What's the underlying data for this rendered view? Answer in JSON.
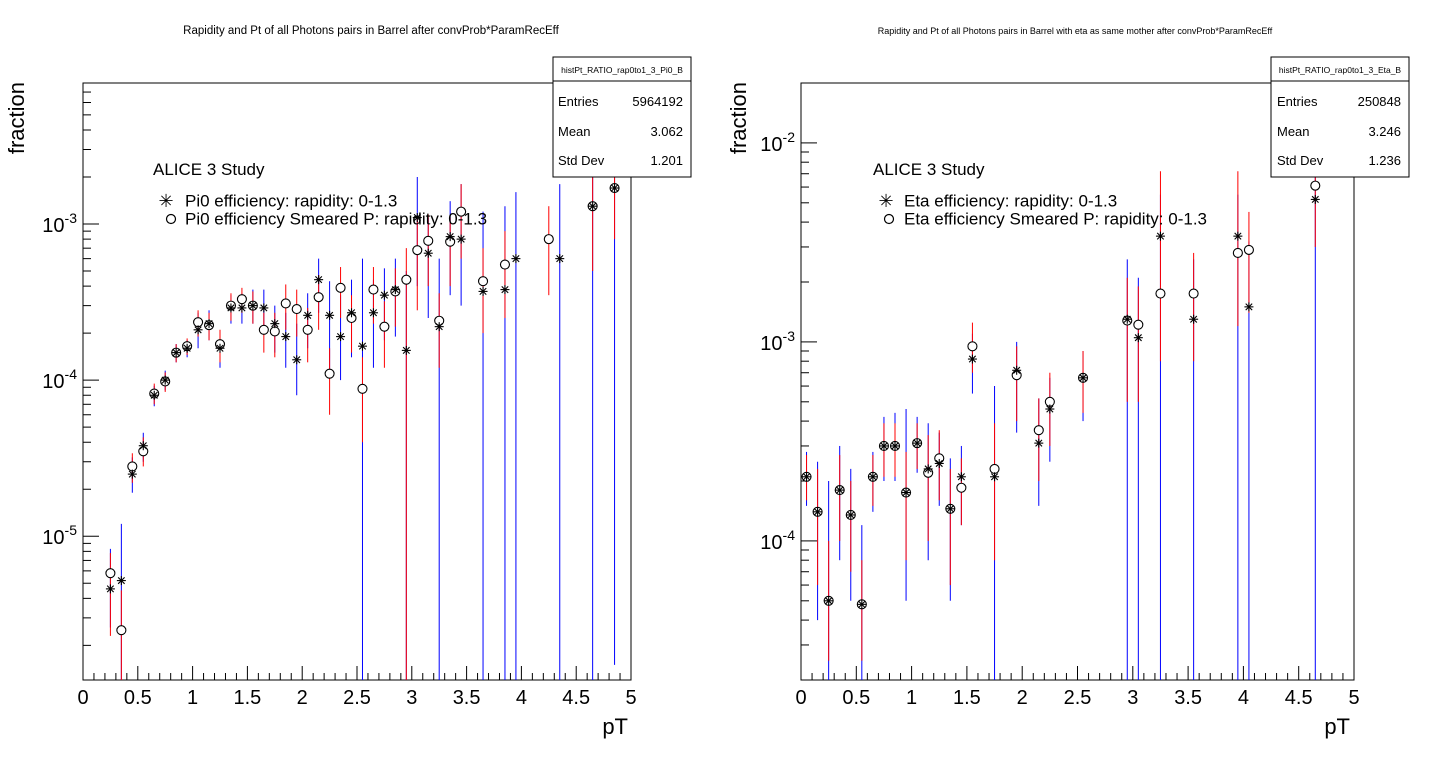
{
  "chart_data": [
    {
      "type": "scatter",
      "title": "Rapidity and Pt of all Photons pairs in Barrel after convProb*ParamRecEff",
      "xlabel": "pT",
      "ylabel": "fraction",
      "xlim": [
        0,
        5
      ],
      "ylim": [
        1.2e-06,
        0.008
      ],
      "ylog": true,
      "x_ticks": [
        "0",
        "0.5",
        "1",
        "1.5",
        "2",
        "2.5",
        "3",
        "3.5",
        "4",
        "4.5",
        "5"
      ],
      "y_ticks": [
        "10",
        "10",
        "10"
      ],
      "y_tick_exponents": [
        "-5",
        "-4",
        "-3"
      ],
      "y_tick_values": [
        1e-05,
        0.0001,
        0.001
      ],
      "annotation": "ALICE 3 Study",
      "legend": [
        {
          "label": "Pi0 efficiency: rapidity: 0-1.3",
          "marker": "star"
        },
        {
          "label": "Pi0 efficiency Smeared P: rapidity: 0-1.3",
          "marker": "circle"
        }
      ],
      "stats": {
        "name": "histPt_RATIO_rap0to1_3_Pi0_B",
        "rows": [
          {
            "label": "Entries",
            "value": "5964192"
          },
          {
            "label": "Mean",
            "value": "3.062"
          },
          {
            "label": "Std Dev",
            "value": "1.201"
          }
        ]
      },
      "series": [
        {
          "marker": "star",
          "error_color": "#0000ff",
          "x": [
            0.25,
            0.35,
            0.45,
            0.55,
            0.65,
            0.75,
            0.85,
            0.95,
            1.05,
            1.15,
            1.25,
            1.35,
            1.45,
            1.55,
            1.65,
            1.75,
            1.85,
            1.95,
            2.05,
            2.15,
            2.25,
            2.35,
            2.45,
            2.55,
            2.65,
            2.75,
            2.85,
            2.95,
            3.05,
            3.15,
            3.25,
            3.35,
            3.45,
            3.65,
            3.85,
            3.95,
            4.35,
            4.65,
            4.85
          ],
          "y": [
            4.6e-06,
            5.2e-06,
            2.5e-05,
            3.8e-05,
            8e-05,
            0.0001,
            0.00015,
            0.00016,
            0.00021,
            0.00023,
            0.00016,
            0.00029,
            0.00029,
            0.0003,
            0.00029,
            0.00023,
            0.00019,
            0.000135,
            0.00026,
            0.00044,
            0.00026,
            0.00019,
            0.00027,
            0.000165,
            0.00027,
            0.00035,
            0.00038,
            0.000155,
            0.0011,
            0.00065,
            0.00022,
            0.00083,
            0.0008,
            0.00037,
            0.00038,
            0.0006,
            0.0006,
            0.0013,
            0.0017
          ],
          "y_low": [
            2.6e-06,
            1.2e-06,
            1.9e-05,
            3e-05,
            6.8e-05,
            8.6e-05,
            0.00013,
            0.00014,
            0.00016,
            0.00018,
            0.00012,
            0.00023,
            0.00023,
            0.00023,
            0.00021,
            0.00015,
            0.00012,
            8e-05,
            0.00016,
            0.00027,
            0.00011,
            0.0001,
            0.00014,
            1.2e-06,
            0.00012,
            0.00018,
            0.00019,
            1.2e-06,
            0.0004,
            0.00025,
            1.2e-06,
            0.00035,
            0.0003,
            1.2e-06,
            1.2e-06,
            1.2e-06,
            1.2e-06,
            1.2e-06,
            1.5e-06
          ],
          "y_high": [
            8.3e-06,
            1.2e-05,
            3.2e-05,
            4.6e-05,
            9.2e-05,
            0.000115,
            0.00017,
            0.00018,
            0.00027,
            0.00028,
            0.0002,
            0.00035,
            0.00036,
            0.00038,
            0.00038,
            0.0003,
            0.00027,
            0.00023,
            0.00036,
            0.0006,
            0.00043,
            0.00035,
            0.00044,
            0.0006,
            0.00044,
            0.00052,
            0.0006,
            0.0005,
            0.002,
            0.0011,
            0.0006,
            0.0014,
            0.0018,
            0.0012,
            0.0013,
            0.0016,
            0.0018,
            0.0024,
            0.004
          ]
        },
        {
          "marker": "circle",
          "error_color": "#ff0000",
          "x": [
            0.25,
            0.35,
            0.45,
            0.55,
            0.65,
            0.75,
            0.85,
            0.95,
            1.05,
            1.15,
            1.25,
            1.35,
            1.45,
            1.55,
            1.65,
            1.75,
            1.85,
            1.95,
            2.05,
            2.15,
            2.25,
            2.35,
            2.45,
            2.55,
            2.65,
            2.75,
            2.85,
            2.95,
            3.05,
            3.15,
            3.25,
            3.35,
            3.45,
            3.65,
            3.85,
            4.25,
            4.65,
            4.85
          ],
          "y": [
            5.8e-06,
            2.5e-06,
            2.8e-05,
            3.5e-05,
            8.2e-05,
            9.8e-05,
            0.00015,
            0.000165,
            0.000235,
            0.000225,
            0.00017,
            0.0003,
            0.00033,
            0.0003,
            0.00021,
            0.000205,
            0.00031,
            0.000285,
            0.00021,
            0.00034,
            0.00011,
            0.00039,
            0.00025,
            8.8e-05,
            0.00038,
            0.00022,
            0.00037,
            0.00044,
            0.00068,
            0.00078,
            0.00024,
            0.00077,
            0.0012,
            0.00043,
            0.00055,
            0.0008,
            0.0013,
            0.0017
          ],
          "y_low": [
            2.3e-06,
            1.2e-06,
            2.2e-05,
            2.8e-05,
            7e-05,
            8.4e-05,
            0.00013,
            0.000145,
            0.00019,
            0.00018,
            0.00013,
            0.00024,
            0.00027,
            0.00023,
            0.00015,
            0.00014,
            0.00021,
            0.00019,
            0.00013,
            0.00021,
            6e-05,
            0.00025,
            0.00015,
            4e-05,
            0.00023,
            0.00012,
            0.00022,
            1.2e-06,
            0.00028,
            0.0004,
            0.00012,
            0.0004,
            0.0006,
            0.0002,
            0.00025,
            0.00035,
            0.0005,
            0.0008
          ],
          "y_high": [
            7.8e-06,
            4.5e-06,
            3.4e-05,
            4.3e-05,
            9.5e-05,
            0.000112,
            0.00017,
            0.000185,
            0.00028,
            0.00027,
            0.00021,
            0.00036,
            0.00039,
            0.00037,
            0.00027,
            0.00027,
            0.00041,
            0.00038,
            0.00029,
            0.00047,
            0.00016,
            0.00053,
            0.00035,
            0.00014,
            0.00053,
            0.00032,
            0.00052,
            0.0007,
            0.0011,
            0.00115,
            0.00036,
            0.0011,
            0.0018,
            0.0007,
            0.0009,
            0.0013,
            0.002,
            0.0026
          ]
        }
      ]
    },
    {
      "type": "scatter",
      "title": "Rapidity and Pt of all Photons pairs in Barrel with eta as same mother after convProb*ParamRecEff",
      "xlabel": "pT",
      "ylabel": "fraction",
      "xlim": [
        0,
        5
      ],
      "ylim": [
        2e-05,
        0.02
      ],
      "ylog": true,
      "x_ticks": [
        "0",
        "0.5",
        "1",
        "1.5",
        "2",
        "2.5",
        "3",
        "3.5",
        "4",
        "4.5",
        "5"
      ],
      "y_ticks": [
        "10",
        "10",
        "10"
      ],
      "y_tick_exponents": [
        "-4",
        "-3",
        "-2"
      ],
      "y_tick_values": [
        0.0001,
        0.001,
        0.01
      ],
      "annotation": "ALICE 3 Study",
      "legend": [
        {
          "label": "Eta efficiency: rapidity: 0-1.3",
          "marker": "star"
        },
        {
          "label": "Eta efficiency Smeared P: rapidity: 0-1.3",
          "marker": "circle"
        }
      ],
      "stats": {
        "name": "histPt_RATIO_rap0to1_3_Eta_B",
        "rows": [
          {
            "label": "Entries",
            "value": "250848"
          },
          {
            "label": "Mean",
            "value": "3.246"
          },
          {
            "label": "Std Dev",
            "value": "1.236"
          }
        ]
      },
      "series": [
        {
          "marker": "star",
          "error_color": "#0000ff",
          "x": [
            0.05,
            0.15,
            0.25,
            0.35,
            0.45,
            0.55,
            0.65,
            0.75,
            0.85,
            0.95,
            1.05,
            1.15,
            1.25,
            1.35,
            1.45,
            1.55,
            1.75,
            1.95,
            2.15,
            2.25,
            2.55,
            2.95,
            3.05,
            3.25,
            3.55,
            3.95,
            4.05,
            4.65
          ],
          "y": [
            0.00021,
            0.00014,
            5e-05,
            0.00018,
            0.000135,
            4.8e-05,
            0.00021,
            0.0003,
            0.0003,
            0.000175,
            0.00031,
            0.00023,
            0.000245,
            0.000145,
            0.00021,
            0.00082,
            0.00021,
            0.00072,
            0.00031,
            0.00046,
            0.00066,
            0.0013,
            0.00105,
            0.0034,
            0.0013,
            0.0034,
            0.0015,
            0.0052
          ],
          "y_low": [
            0.00015,
            4e-05,
            2e-05,
            8e-05,
            5e-05,
            2e-05,
            0.00014,
            0.0002,
            0.0002,
            5e-05,
            0.00022,
            8e-05,
            0.00015,
            5e-05,
            0.00012,
            0.00055,
            2e-05,
            0.00035,
            0.00015,
            0.00025,
            0.0004,
            2e-05,
            2e-05,
            2e-05,
            2e-05,
            2e-05,
            2e-05,
            2e-05
          ],
          "y_high": [
            0.00028,
            0.00025,
            0.0002,
            0.0003,
            0.00023,
            0.00012,
            0.00028,
            0.00042,
            0.00044,
            0.00046,
            0.00042,
            0.00039,
            0.00035,
            0.00026,
            0.0003,
            0.0011,
            0.0006,
            0.001,
            0.00052,
            0.00066,
            0.0009,
            0.0026,
            0.0021,
            0.0055,
            0.0026,
            0.0055,
            0.0032,
            0.0125
          ]
        },
        {
          "marker": "circle",
          "error_color": "#ff0000",
          "x": [
            0.05,
            0.15,
            0.25,
            0.35,
            0.45,
            0.55,
            0.65,
            0.75,
            0.85,
            0.95,
            1.05,
            1.15,
            1.25,
            1.35,
            1.45,
            1.55,
            1.75,
            1.95,
            2.15,
            2.25,
            2.55,
            2.95,
            3.05,
            3.25,
            3.55,
            3.95,
            4.05,
            4.65
          ],
          "y": [
            0.00021,
            0.00014,
            5e-05,
            0.00018,
            0.000135,
            4.8e-05,
            0.00021,
            0.0003,
            0.0003,
            0.000175,
            0.00031,
            0.00022,
            0.00026,
            0.000145,
            0.000185,
            0.00095,
            0.00023,
            0.00068,
            0.00036,
            0.0005,
            0.00066,
            0.00128,
            0.00122,
            0.00175,
            0.00175,
            0.0028,
            0.0029,
            0.0061
          ],
          "y_low": [
            0.00016,
            6e-05,
            2.5e-05,
            0.0001,
            7e-05,
            2.5e-05,
            0.00015,
            0.00021,
            0.00021,
            8e-05,
            0.00023,
            0.0001,
            0.00016,
            6e-05,
            0.00012,
            0.0007,
            8e-05,
            0.0004,
            0.0002,
            0.0003,
            0.00044,
            0.0005,
            0.0005,
            0.0008,
            0.0008,
            0.0012,
            0.0014,
            0.003
          ],
          "y_high": [
            0.00027,
            0.00023,
            0.0001,
            0.00027,
            0.0002,
            8e-05,
            0.00027,
            0.00039,
            0.00039,
            0.00028,
            0.00039,
            0.00034,
            0.00036,
            0.00023,
            0.00026,
            0.00125,
            0.00039,
            0.00095,
            0.00052,
            0.0007,
            0.0009,
            0.0021,
            0.0019,
            0.0072,
            0.0028,
            0.0072,
            0.0045,
            0.008
          ]
        }
      ]
    }
  ]
}
